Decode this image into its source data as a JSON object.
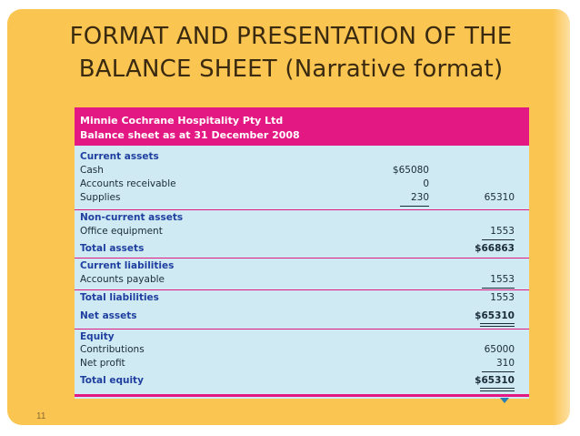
{
  "slide": {
    "title_line1": "FORMAT AND PRESENTATION OF THE",
    "title_line2": "BALANCE SHEET (Narrative format)",
    "page_number": "11",
    "colors": {
      "background": "#fbc552",
      "accent": "#e31883",
      "table_bg": "#cfeaf2"
    }
  },
  "sheet": {
    "company": "Minnie Cochrane Hospitality Pty Ltd",
    "subtitle": "Balance sheet as at 31 December 2008",
    "rows": [
      {
        "label": "Current assets",
        "type": "heading"
      },
      {
        "label": "Cash",
        "col1": "$65080",
        "col2": ""
      },
      {
        "label": "Accounts receivable",
        "col1": "0",
        "col2": ""
      },
      {
        "label": "Supplies",
        "col1": "230",
        "col2": "65310"
      },
      {
        "label": "Non-current assets",
        "type": "heading"
      },
      {
        "label": "Office equipment",
        "col1": "",
        "col2": "1553"
      },
      {
        "label": "Total assets",
        "type": "heading",
        "col1": "",
        "col2": "$66863"
      },
      {
        "label": "Current liabilities",
        "type": "heading"
      },
      {
        "label": "Accounts payable",
        "col1": "",
        "col2": "1553"
      },
      {
        "label": "Total liabilities",
        "type": "heading",
        "col1": "",
        "col2": "1553"
      },
      {
        "label": "Net assets",
        "type": "heading",
        "col1": "",
        "col2": "$65310"
      },
      {
        "label": "Equity",
        "type": "heading"
      },
      {
        "label": "Contributions",
        "col1": "",
        "col2": "65000"
      },
      {
        "label": "Net profit",
        "col1": "",
        "col2": "310"
      },
      {
        "label": "Total equity",
        "type": "heading",
        "col1": "",
        "col2": "$65310"
      }
    ]
  }
}
